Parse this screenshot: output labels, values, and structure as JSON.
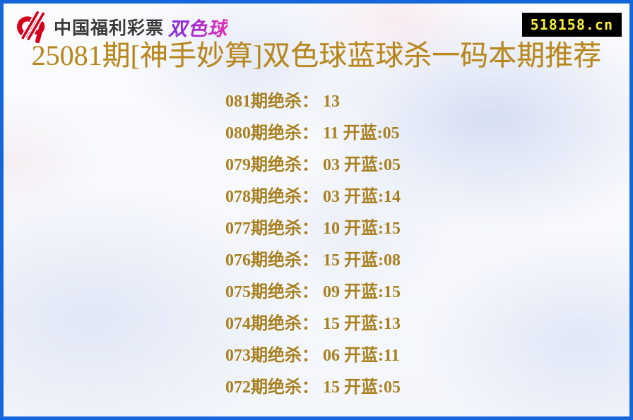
{
  "header": {
    "logo": {
      "icon": "china-welfare-lottery-icon",
      "org_text": "中国福利彩票",
      "brand_text": "双色球"
    },
    "site_badge": "518158.cn"
  },
  "title": "25081期[神手妙算]双色球蓝球杀一码本期推荐",
  "records": [
    {
      "text": "081期绝杀： 13"
    },
    {
      "text": "080期绝杀： 11 开蓝:05"
    },
    {
      "text": "079期绝杀： 03 开蓝:05"
    },
    {
      "text": "078期绝杀： 03 开蓝:14"
    },
    {
      "text": "077期绝杀： 10 开蓝:15"
    },
    {
      "text": "076期绝杀： 15 开蓝:08"
    },
    {
      "text": "075期绝杀： 09 开蓝:15"
    },
    {
      "text": "074期绝杀： 15 开蓝:13"
    },
    {
      "text": "073期绝杀： 06 开蓝:11"
    },
    {
      "text": "072期绝杀： 15 开蓝:05"
    }
  ],
  "colors": {
    "border_blue": "#1566db",
    "title_gold": "#b8871c",
    "record_gold": "#a8801f",
    "logo_red": "#d6001c",
    "brand_gradient_start": "#7d2ee0",
    "brand_gradient_end": "#e02bb4",
    "badge_bg": "#000000",
    "badge_text": "#f8ef3b"
  }
}
